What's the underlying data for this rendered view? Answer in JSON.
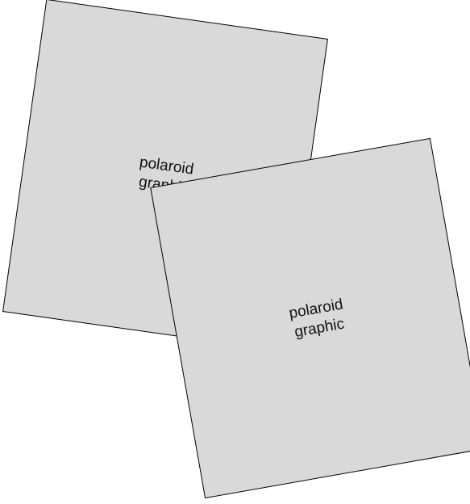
{
  "polaroids": [
    {
      "label_line1": "polaroid",
      "label_line2": "graphic"
    },
    {
      "label_line1": "polaroid",
      "label_line2": "graphic"
    }
  ],
  "colors": {
    "card_fill": "#d9d9d9",
    "card_stroke": "#000000",
    "background": "#ffffff"
  }
}
